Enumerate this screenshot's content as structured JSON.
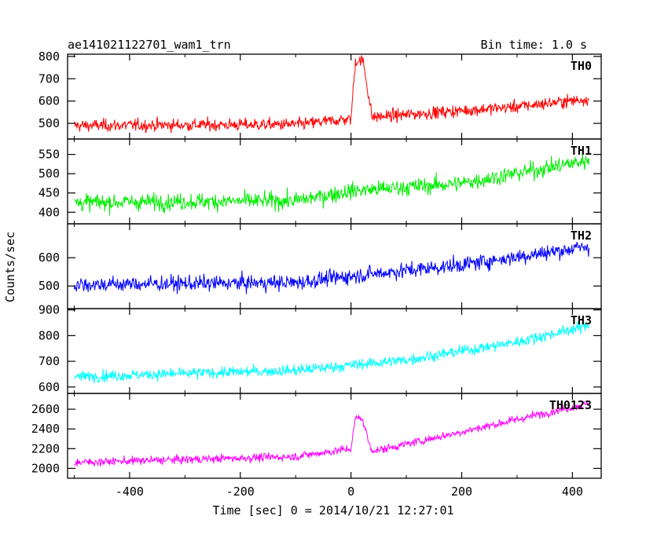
{
  "chart_data": {
    "type": "line",
    "title": "ae141021122701_wam1_trn",
    "bin_time_label": "Bin time: 1.0 s",
    "xlabel": "Time [sec] 0 = 2014/10/21 12:27:01",
    "ylabel": "Counts/sec",
    "xlim": [
      -512,
      452
    ],
    "x_ticks": [
      -400,
      -200,
      0,
      200,
      400
    ],
    "x_range_data": [
      -500,
      430
    ],
    "grid": false,
    "panels": [
      {
        "name": "TH0",
        "color": "#ff0000",
        "ylim": [
          430,
          810
        ],
        "y_ticks": [
          500,
          600,
          700,
          800
        ],
        "trend": [
          [
            -500,
            490
          ],
          [
            -100,
            495
          ],
          [
            0,
            520
          ],
          [
            50,
            530
          ],
          [
            300,
            575
          ],
          [
            430,
            610
          ]
        ],
        "noise": 28,
        "burst": {
          "start": 0,
          "peak_start": 8,
          "peak_end": 22,
          "end": 38,
          "peak": 780
        }
      },
      {
        "name": "TH1",
        "color": "#00ee00",
        "ylim": [
          370,
          590
        ],
        "y_ticks": [
          400,
          450,
          500,
          550
        ],
        "trend": [
          [
            -500,
            425
          ],
          [
            -100,
            430
          ],
          [
            0,
            455
          ],
          [
            200,
            475
          ],
          [
            430,
            535
          ]
        ],
        "noise": 22
      },
      {
        "name": "TH2",
        "color": "#0000ff",
        "ylim": [
          420,
          720
        ],
        "y_ticks": [
          500,
          600
        ],
        "trend": [
          [
            -500,
            505
          ],
          [
            -100,
            512
          ],
          [
            0,
            535
          ],
          [
            200,
            575
          ],
          [
            430,
            640
          ]
        ],
        "noise": 28
      },
      {
        "name": "TH3",
        "color": "#00ffff",
        "ylim": [
          575,
          905
        ],
        "y_ticks": [
          600,
          700,
          800,
          900
        ],
        "trend": [
          [
            -500,
            640
          ],
          [
            -100,
            665
          ],
          [
            100,
            705
          ],
          [
            300,
            775
          ],
          [
            430,
            840
          ]
        ],
        "noise": 22
      },
      {
        "name": "TH0123",
        "color": "#ff00ff",
        "ylim": [
          1900,
          2760
        ],
        "y_ticks": [
          2000,
          2200,
          2400,
          2600
        ],
        "trend": [
          [
            -500,
            2060
          ],
          [
            -100,
            2120
          ],
          [
            0,
            2200
          ],
          [
            50,
            2185
          ],
          [
            200,
            2370
          ],
          [
            430,
            2660
          ]
        ],
        "noise": 42,
        "burst": {
          "start": 0,
          "peak_start": 8,
          "peak_end": 20,
          "end": 36,
          "peak": 2510
        }
      }
    ]
  }
}
